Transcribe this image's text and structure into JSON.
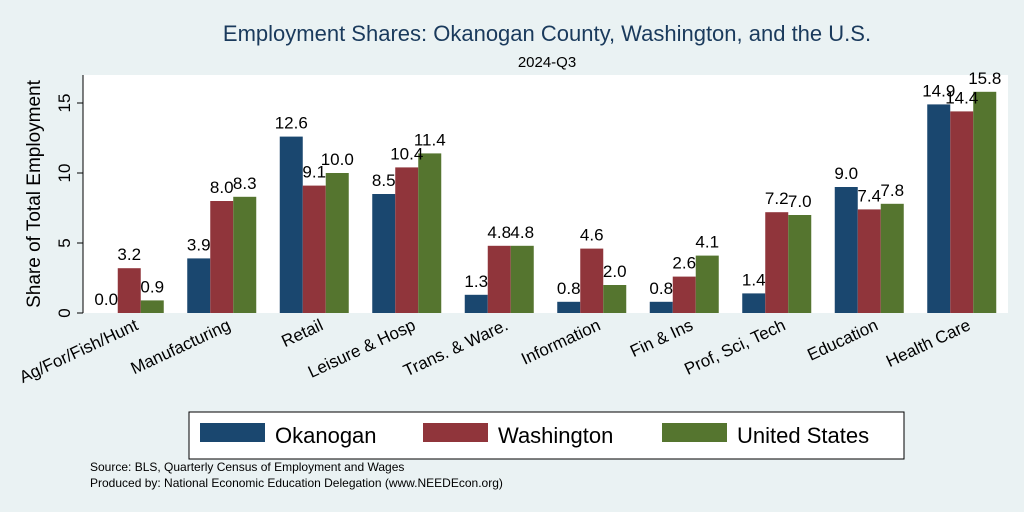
{
  "chart_data": {
    "type": "bar",
    "title": "Employment Shares: Okanogan County, Washington, and the U.S.",
    "subtitle": "2024-Q3",
    "ylabel": "Share of Total Employment",
    "xlabel": "",
    "ylim": [
      0,
      17
    ],
    "yticks": [
      0,
      5,
      10,
      15
    ],
    "grid": false,
    "legend_position": "bottom",
    "categories": [
      "Ag/For/Fish/Hunt",
      "Manufacturing",
      "Retail",
      "Leisure & Hosp",
      "Trans. & Ware.",
      "Information",
      "Fin & Ins",
      "Prof, Sci, Tech",
      "Education",
      "Health Care"
    ],
    "series": [
      {
        "name": "Okanogan",
        "color": "#1a476f",
        "values": [
          0.0,
          3.9,
          12.6,
          8.5,
          1.3,
          0.8,
          0.8,
          1.4,
          9.0,
          14.9
        ]
      },
      {
        "name": "Washington",
        "color": "#90353b",
        "values": [
          3.2,
          8.0,
          9.1,
          10.4,
          4.8,
          4.6,
          2.6,
          7.2,
          7.4,
          14.4
        ]
      },
      {
        "name": "United States",
        "color": "#55752f",
        "values": [
          0.9,
          8.3,
          10.0,
          11.4,
          4.8,
          2.0,
          4.1,
          7.0,
          7.8,
          15.8
        ]
      }
    ]
  },
  "notes": {
    "source": "Source: BLS, Quarterly Census of Employment and Wages",
    "produced": "Produced by: National Economic Education Delegation (www.NEEDEcon.org)"
  }
}
